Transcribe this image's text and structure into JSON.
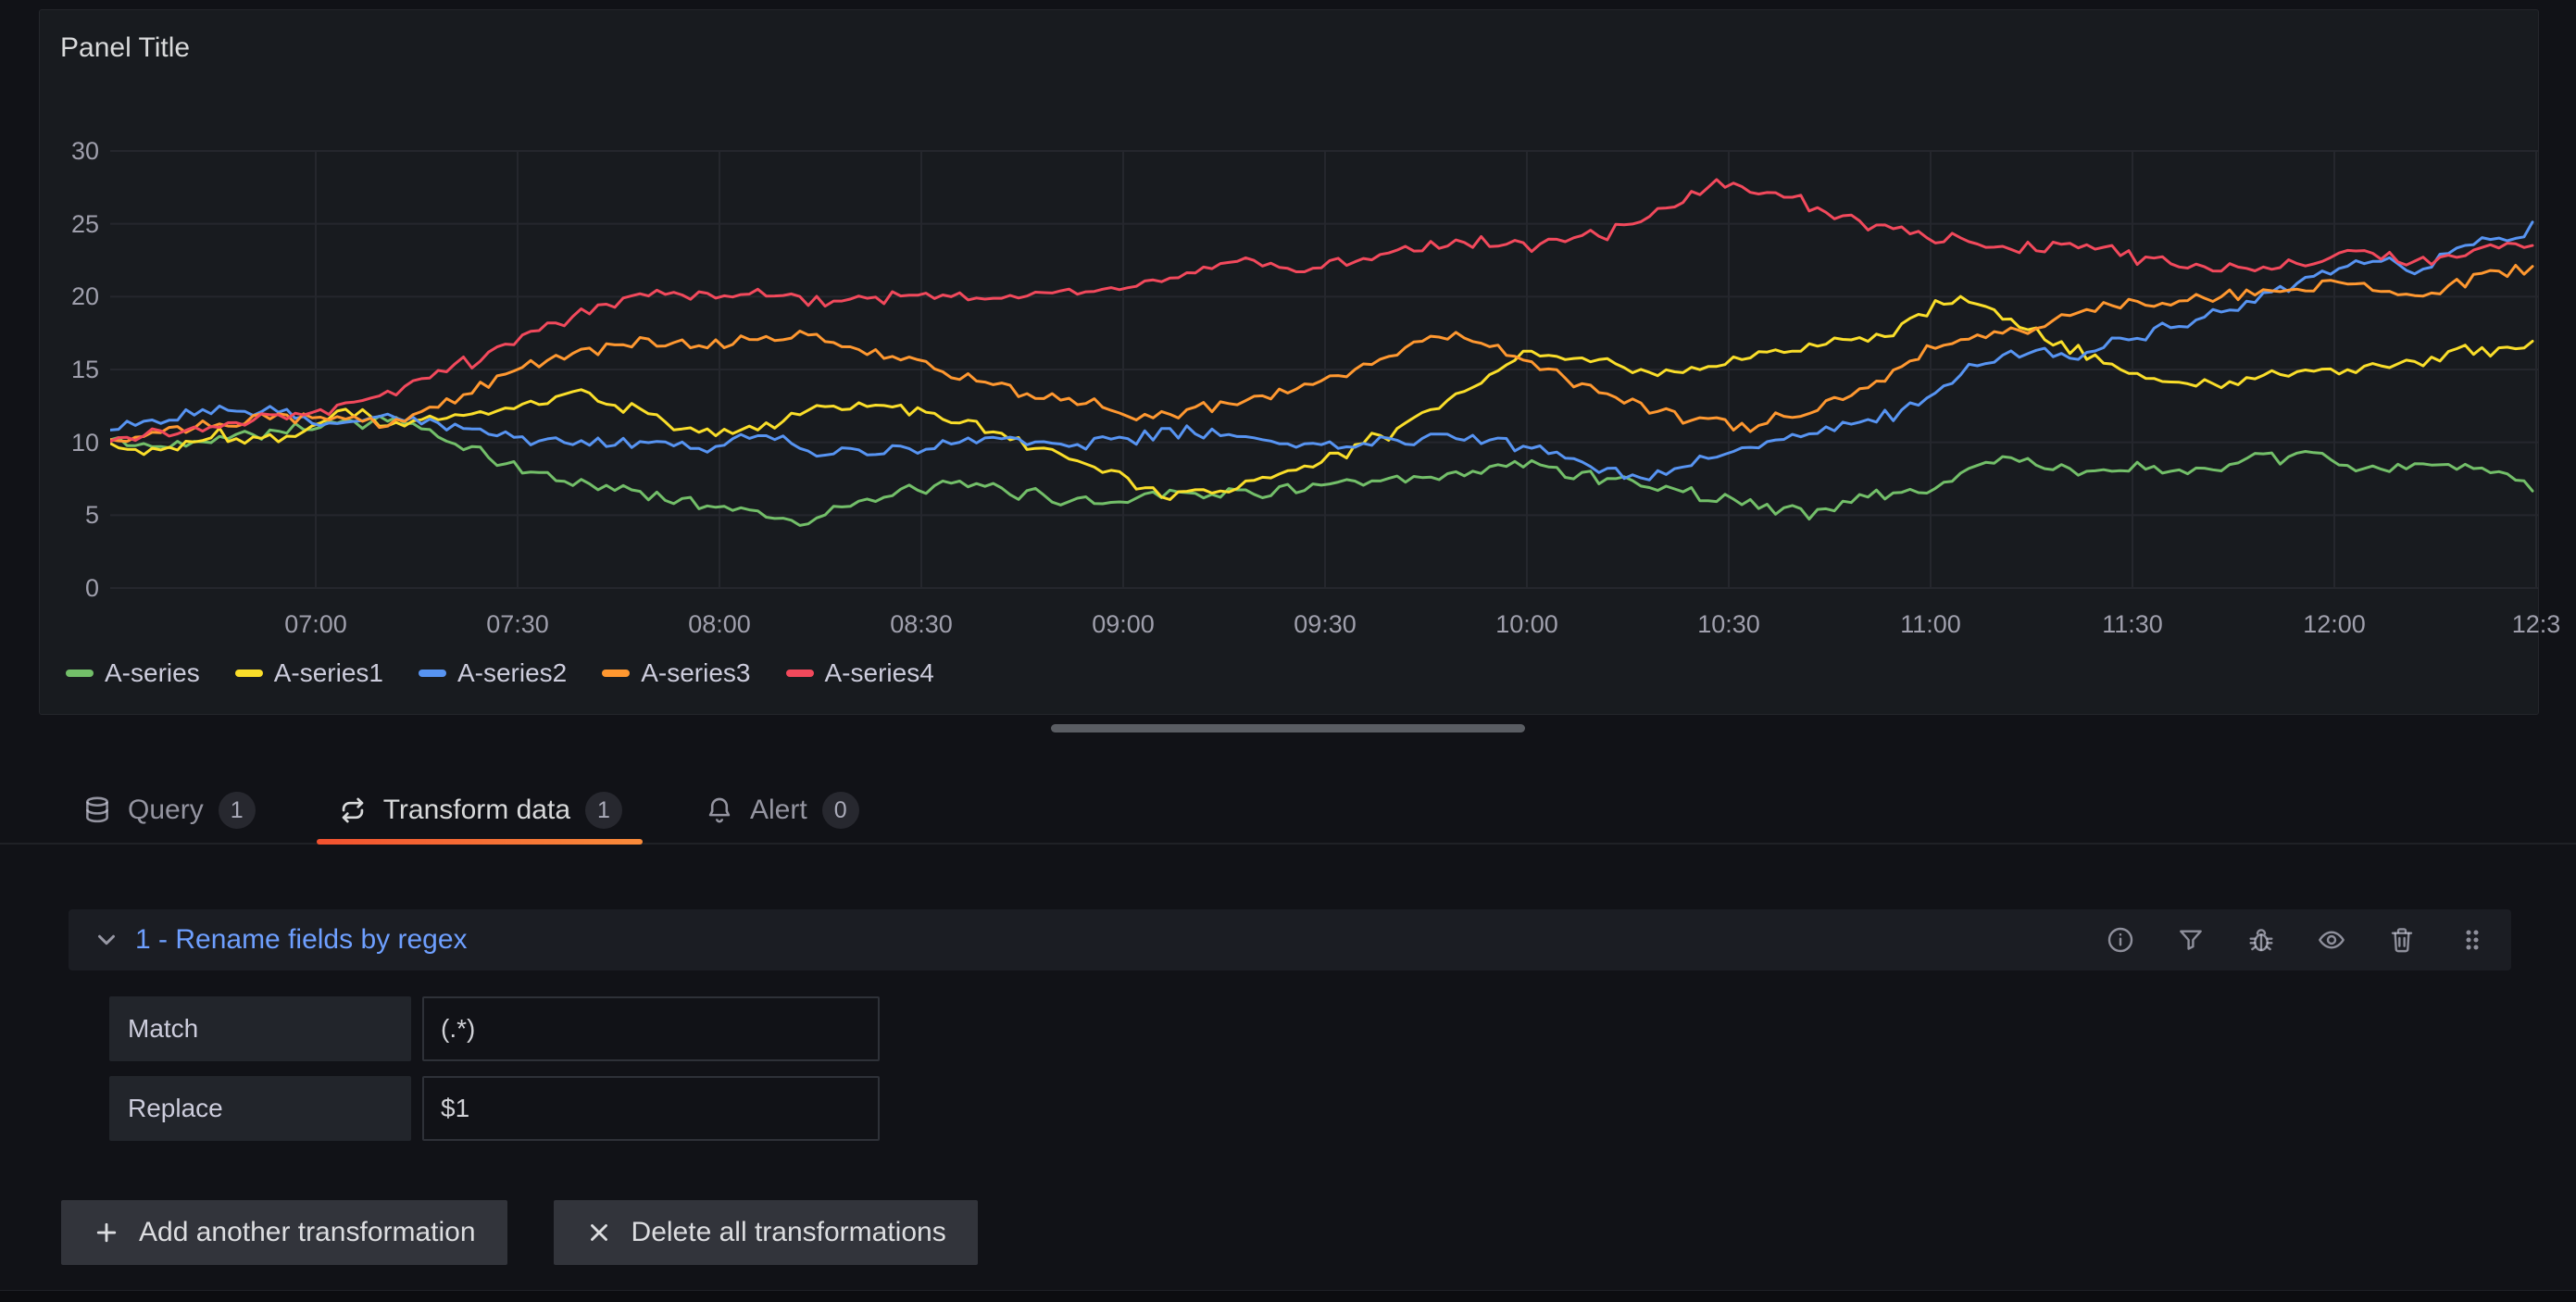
{
  "panel": {
    "title": "Panel Title"
  },
  "chart_data": {
    "type": "line",
    "title": "Panel Title",
    "x_ticks": [
      "07:00",
      "07:30",
      "08:00",
      "08:30",
      "09:00",
      "09:30",
      "10:00",
      "10:30",
      "11:00",
      "11:30",
      "12:00",
      "12:3"
    ],
    "y_ticks": [
      0,
      5,
      10,
      15,
      20,
      25,
      30
    ],
    "ylim": [
      0,
      30
    ],
    "time_range_hours": [
      6.49,
      12.5
    ],
    "grid": true,
    "legend_position": "bottom",
    "noise": {
      "seed": 42,
      "amplitude": 0.55,
      "step_minutes": 1.25
    },
    "series": [
      {
        "name": "A-series",
        "color": "#73BF69",
        "anchors": [
          [
            6.48,
            10.2
          ],
          [
            6.6,
            9.6
          ],
          [
            6.75,
            10.4
          ],
          [
            6.9,
            10.8
          ],
          [
            7.05,
            11.3
          ],
          [
            7.2,
            11.6
          ],
          [
            7.35,
            9.8
          ],
          [
            7.5,
            8.2
          ],
          [
            7.65,
            7.2
          ],
          [
            7.8,
            6.6
          ],
          [
            7.95,
            5.8
          ],
          [
            8.1,
            5.2
          ],
          [
            8.2,
            4.6
          ],
          [
            8.35,
            5.8
          ],
          [
            8.5,
            6.9
          ],
          [
            8.65,
            7.0
          ],
          [
            8.8,
            6.3
          ],
          [
            8.95,
            5.8
          ],
          [
            9.1,
            6.7
          ],
          [
            9.25,
            6.4
          ],
          [
            9.4,
            6.8
          ],
          [
            9.55,
            7.1
          ],
          [
            9.7,
            7.3
          ],
          [
            9.85,
            7.8
          ],
          [
            10.0,
            8.6
          ],
          [
            10.1,
            8.0
          ],
          [
            10.25,
            7.3
          ],
          [
            10.4,
            6.6
          ],
          [
            10.55,
            5.8
          ],
          [
            10.7,
            5.1
          ],
          [
            10.85,
            6.4
          ],
          [
            11.0,
            6.7
          ],
          [
            11.1,
            8.2
          ],
          [
            11.2,
            9.1
          ],
          [
            11.35,
            7.9
          ],
          [
            11.5,
            8.3
          ],
          [
            11.65,
            7.9
          ],
          [
            11.8,
            8.7
          ],
          [
            11.95,
            9.2
          ],
          [
            12.1,
            8.0
          ],
          [
            12.25,
            8.5
          ],
          [
            12.4,
            8.0
          ],
          [
            12.52,
            6.4
          ]
        ]
      },
      {
        "name": "A-series1",
        "color": "#FADE2A",
        "anchors": [
          [
            6.48,
            9.8
          ],
          [
            6.6,
            9.2
          ],
          [
            6.75,
            10.6
          ],
          [
            6.9,
            10.1
          ],
          [
            7.05,
            12.0
          ],
          [
            7.2,
            11.4
          ],
          [
            7.35,
            11.9
          ],
          [
            7.5,
            12.4
          ],
          [
            7.65,
            13.4
          ],
          [
            7.8,
            12.2
          ],
          [
            7.95,
            10.6
          ],
          [
            8.1,
            10.9
          ],
          [
            8.25,
            12.3
          ],
          [
            8.4,
            12.6
          ],
          [
            8.55,
            11.8
          ],
          [
            8.7,
            10.4
          ],
          [
            8.85,
            9.2
          ],
          [
            9.0,
            7.6
          ],
          [
            9.1,
            6.3
          ],
          [
            9.25,
            6.9
          ],
          [
            9.4,
            7.8
          ],
          [
            9.55,
            9.3
          ],
          [
            9.7,
            11.2
          ],
          [
            9.85,
            13.6
          ],
          [
            10.0,
            16.2
          ],
          [
            10.15,
            15.6
          ],
          [
            10.3,
            14.9
          ],
          [
            10.45,
            15.1
          ],
          [
            10.6,
            16.2
          ],
          [
            10.75,
            16.8
          ],
          [
            10.9,
            17.4
          ],
          [
            11.0,
            19.2
          ],
          [
            11.1,
            19.8
          ],
          [
            11.25,
            17.6
          ],
          [
            11.4,
            15.8
          ],
          [
            11.55,
            14.2
          ],
          [
            11.7,
            14.0
          ],
          [
            11.85,
            14.6
          ],
          [
            12.0,
            14.9
          ],
          [
            12.15,
            15.2
          ],
          [
            12.3,
            16.1
          ],
          [
            12.45,
            16.6
          ],
          [
            12.52,
            17.8
          ]
        ]
      },
      {
        "name": "A-series2",
        "color": "#5794F2",
        "anchors": [
          [
            6.48,
            10.6
          ],
          [
            6.6,
            11.4
          ],
          [
            6.75,
            12.4
          ],
          [
            6.9,
            12.0
          ],
          [
            7.05,
            11.2
          ],
          [
            7.2,
            11.8
          ],
          [
            7.35,
            11.0
          ],
          [
            7.5,
            10.2
          ],
          [
            7.65,
            9.9
          ],
          [
            7.8,
            10.1
          ],
          [
            7.95,
            9.6
          ],
          [
            8.1,
            10.4
          ],
          [
            8.25,
            9.2
          ],
          [
            8.4,
            9.4
          ],
          [
            8.55,
            9.9
          ],
          [
            8.7,
            10.1
          ],
          [
            8.85,
            9.8
          ],
          [
            9.0,
            10.2
          ],
          [
            9.15,
            10.7
          ],
          [
            9.3,
            10.4
          ],
          [
            9.45,
            9.7
          ],
          [
            9.6,
            9.9
          ],
          [
            9.75,
            10.3
          ],
          [
            9.9,
            10.1
          ],
          [
            10.05,
            9.4
          ],
          [
            10.2,
            8.0
          ],
          [
            10.3,
            7.4
          ],
          [
            10.45,
            9.0
          ],
          [
            10.6,
            10.2
          ],
          [
            10.75,
            10.9
          ],
          [
            10.9,
            11.8
          ],
          [
            11.0,
            13.2
          ],
          [
            11.1,
            15.2
          ],
          [
            11.2,
            16.2
          ],
          [
            11.35,
            16.0
          ],
          [
            11.5,
            17.2
          ],
          [
            11.65,
            18.3
          ],
          [
            11.8,
            19.8
          ],
          [
            11.95,
            21.2
          ],
          [
            12.1,
            22.6
          ],
          [
            12.2,
            22.0
          ],
          [
            12.35,
            23.6
          ],
          [
            12.45,
            24.2
          ],
          [
            12.52,
            25.2
          ]
        ]
      },
      {
        "name": "A-series3",
        "color": "#FF9830",
        "anchors": [
          [
            6.48,
            10.0
          ],
          [
            6.6,
            10.6
          ],
          [
            6.75,
            11.2
          ],
          [
            6.9,
            11.9
          ],
          [
            7.05,
            11.6
          ],
          [
            7.2,
            11.3
          ],
          [
            7.35,
            13.2
          ],
          [
            7.5,
            15.0
          ],
          [
            7.65,
            16.2
          ],
          [
            7.8,
            17.0
          ],
          [
            7.95,
            16.4
          ],
          [
            8.1,
            17.2
          ],
          [
            8.2,
            17.6
          ],
          [
            8.35,
            16.2
          ],
          [
            8.5,
            15.6
          ],
          [
            8.65,
            14.2
          ],
          [
            8.8,
            13.2
          ],
          [
            8.95,
            12.4
          ],
          [
            9.1,
            11.6
          ],
          [
            9.25,
            12.6
          ],
          [
            9.4,
            13.4
          ],
          [
            9.55,
            14.8
          ],
          [
            9.7,
            16.6
          ],
          [
            9.8,
            17.4
          ],
          [
            9.95,
            16.2
          ],
          [
            10.1,
            14.4
          ],
          [
            10.25,
            12.8
          ],
          [
            10.4,
            11.6
          ],
          [
            10.55,
            11.2
          ],
          [
            10.7,
            12.1
          ],
          [
            10.85,
            13.8
          ],
          [
            11.0,
            16.4
          ],
          [
            11.15,
            17.3
          ],
          [
            11.3,
            18.4
          ],
          [
            11.45,
            19.3
          ],
          [
            11.6,
            19.7
          ],
          [
            11.75,
            20.1
          ],
          [
            11.9,
            20.6
          ],
          [
            12.05,
            21.2
          ],
          [
            12.2,
            19.7
          ],
          [
            12.35,
            21.3
          ],
          [
            12.45,
            21.9
          ],
          [
            12.52,
            22.1
          ]
        ]
      },
      {
        "name": "A-series4",
        "color": "#F2495C",
        "anchors": [
          [
            6.48,
            10.2
          ],
          [
            6.6,
            10.7
          ],
          [
            6.75,
            11.1
          ],
          [
            6.9,
            11.6
          ],
          [
            7.05,
            12.3
          ],
          [
            7.2,
            13.6
          ],
          [
            7.35,
            15.2
          ],
          [
            7.5,
            16.8
          ],
          [
            7.65,
            18.6
          ],
          [
            7.8,
            20.2
          ],
          [
            7.95,
            20.0
          ],
          [
            8.1,
            20.3
          ],
          [
            8.25,
            19.6
          ],
          [
            8.4,
            19.9
          ],
          [
            8.55,
            20.1
          ],
          [
            8.7,
            20.0
          ],
          [
            8.85,
            20.3
          ],
          [
            9.0,
            20.6
          ],
          [
            9.15,
            21.4
          ],
          [
            9.3,
            22.4
          ],
          [
            9.45,
            22.0
          ],
          [
            9.6,
            22.9
          ],
          [
            9.75,
            23.4
          ],
          [
            9.9,
            23.8
          ],
          [
            10.05,
            23.4
          ],
          [
            10.2,
            24.4
          ],
          [
            10.35,
            26.0
          ],
          [
            10.5,
            28.0
          ],
          [
            10.6,
            27.2
          ],
          [
            10.75,
            25.8
          ],
          [
            10.9,
            24.6
          ],
          [
            11.05,
            23.9
          ],
          [
            11.2,
            23.1
          ],
          [
            11.35,
            23.6
          ],
          [
            11.5,
            22.7
          ],
          [
            11.65,
            22.1
          ],
          [
            11.8,
            21.9
          ],
          [
            11.95,
            22.4
          ],
          [
            12.05,
            23.3
          ],
          [
            12.2,
            22.3
          ],
          [
            12.35,
            23.2
          ],
          [
            12.45,
            23.8
          ],
          [
            12.52,
            23.1
          ]
        ]
      }
    ]
  },
  "tabs": [
    {
      "label": "Query",
      "count": "1",
      "icon": "database",
      "active": false
    },
    {
      "label": "Transform data",
      "count": "1",
      "icon": "process",
      "active": true
    },
    {
      "label": "Alert",
      "count": "0",
      "icon": "bell",
      "active": false
    }
  ],
  "transform": {
    "header": "1 - Rename fields by regex",
    "header_actions": [
      "info",
      "filter",
      "bug",
      "eye",
      "trash",
      "drag-handle"
    ],
    "collapse_icon": "chevron-down",
    "fields": [
      {
        "label": "Match",
        "value": "(.*)"
      },
      {
        "label": "Replace",
        "value": "$1"
      }
    ],
    "buttons": {
      "add": {
        "icon": "plus",
        "label": "Add another transformation"
      },
      "delete": {
        "icon": "close",
        "label": "Delete all transformations"
      }
    }
  },
  "colors": {
    "background": "#111217",
    "panel_background": "#181b1f",
    "link": "#6e9fff",
    "tab_indicator_start": "#f2512f",
    "tab_indicator_end": "#fa8b3a"
  }
}
